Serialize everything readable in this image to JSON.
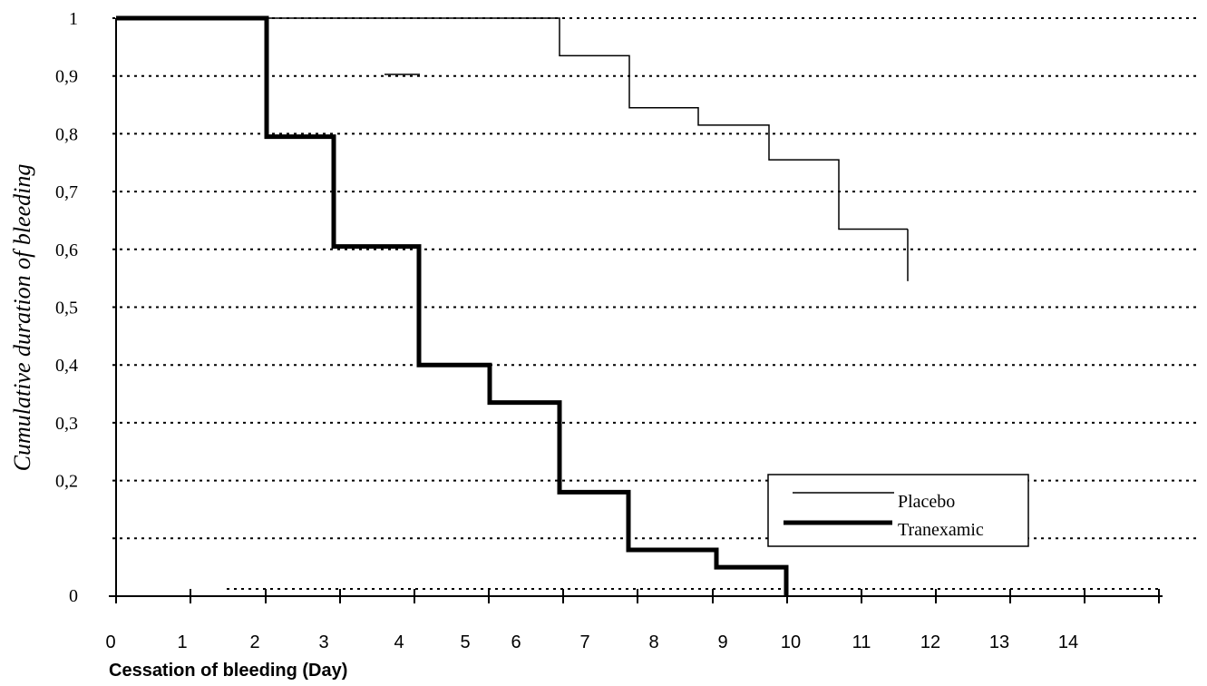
{
  "chart_data": {
    "type": "line",
    "step": true,
    "xlabel": "Cessation of bleeding (Day)",
    "ylabel": "Cumulative duration of bleeding",
    "x_ticks": [
      "0",
      "1",
      "2",
      "3",
      "4",
      "5",
      "6",
      "7",
      "8",
      "9",
      "10",
      "11",
      "12",
      "13",
      "14"
    ],
    "y_ticks": [
      "0",
      "",
      "0,2",
      "0,3",
      "0,4",
      "0,5",
      "0,6",
      "0,7",
      "0,8",
      "0,9",
      "1"
    ],
    "ylim": [
      0,
      1
    ],
    "xlim": [
      0,
      15
    ],
    "grid": true,
    "legend_position": "lower-right",
    "series": [
      {
        "name": "Placebo",
        "x": [
          0,
          6,
          6,
          7,
          7,
          8,
          8,
          9,
          9,
          10,
          10,
          11
        ],
        "y": [
          1,
          1,
          0.935,
          0.935,
          0.845,
          0.845,
          0.815,
          0.815,
          0.755,
          0.755,
          0.635,
          0.635
        ],
        "end_drop_to": 0.545,
        "stroke_width": 1.5
      },
      {
        "name": "Tranexamic",
        "x": [
          0,
          2,
          2,
          3,
          3,
          4,
          4,
          5,
          5,
          6,
          6,
          7,
          7,
          8,
          8,
          9,
          9
        ],
        "y": [
          1,
          1,
          0.795,
          0.795,
          0.605,
          0.605,
          0.4,
          0.4,
          0.335,
          0.335,
          0.18,
          0.18,
          0.08,
          0.08,
          0.05,
          0.05,
          0
        ],
        "stroke_width": 5
      }
    ]
  }
}
